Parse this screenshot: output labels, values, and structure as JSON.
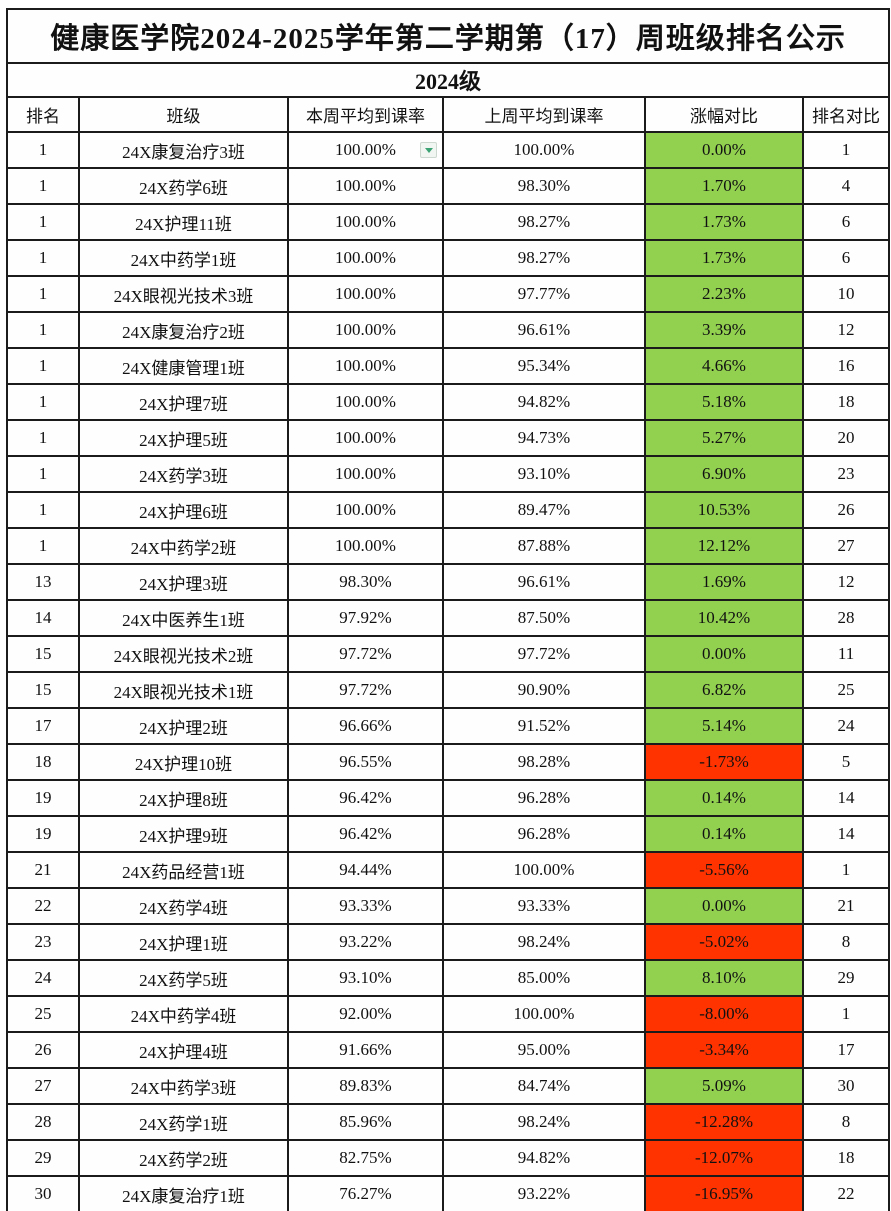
{
  "page": {
    "title": "健康医学院2024-2025学年第二学期第（17）周班级排名公示",
    "grade_label": "2024级"
  },
  "colors": {
    "positive_bg": "#92d050",
    "negative_bg": "#ff3300",
    "filter_arrow": "#3ba273",
    "border": "#1b1b1b"
  },
  "table": {
    "columns": [
      "排名",
      "班级",
      "本周平均到课率",
      "上周平均到课率",
      "涨幅对比",
      "排名对比"
    ],
    "rows": [
      {
        "rank": "1",
        "class": "24X康复治疗3班",
        "this_week": "100.00%",
        "last_week": "100.00%",
        "change": "0.00%",
        "trend": "positive",
        "rank_compare": "1",
        "filter_dropdown": true
      },
      {
        "rank": "1",
        "class": "24X药学6班",
        "this_week": "100.00%",
        "last_week": "98.30%",
        "change": "1.70%",
        "trend": "positive",
        "rank_compare": "4"
      },
      {
        "rank": "1",
        "class": "24X护理11班",
        "this_week": "100.00%",
        "last_week": "98.27%",
        "change": "1.73%",
        "trend": "positive",
        "rank_compare": "6"
      },
      {
        "rank": "1",
        "class": "24X中药学1班",
        "this_week": "100.00%",
        "last_week": "98.27%",
        "change": "1.73%",
        "trend": "positive",
        "rank_compare": "6"
      },
      {
        "rank": "1",
        "class": "24X眼视光技术3班",
        "this_week": "100.00%",
        "last_week": "97.77%",
        "change": "2.23%",
        "trend": "positive",
        "rank_compare": "10"
      },
      {
        "rank": "1",
        "class": "24X康复治疗2班",
        "this_week": "100.00%",
        "last_week": "96.61%",
        "change": "3.39%",
        "trend": "positive",
        "rank_compare": "12"
      },
      {
        "rank": "1",
        "class": "24X健康管理1班",
        "this_week": "100.00%",
        "last_week": "95.34%",
        "change": "4.66%",
        "trend": "positive",
        "rank_compare": "16"
      },
      {
        "rank": "1",
        "class": "24X护理7班",
        "this_week": "100.00%",
        "last_week": "94.82%",
        "change": "5.18%",
        "trend": "positive",
        "rank_compare": "18"
      },
      {
        "rank": "1",
        "class": "24X护理5班",
        "this_week": "100.00%",
        "last_week": "94.73%",
        "change": "5.27%",
        "trend": "positive",
        "rank_compare": "20"
      },
      {
        "rank": "1",
        "class": "24X药学3班",
        "this_week": "100.00%",
        "last_week": "93.10%",
        "change": "6.90%",
        "trend": "positive",
        "rank_compare": "23"
      },
      {
        "rank": "1",
        "class": "24X护理6班",
        "this_week": "100.00%",
        "last_week": "89.47%",
        "change": "10.53%",
        "trend": "positive",
        "rank_compare": "26"
      },
      {
        "rank": "1",
        "class": "24X中药学2班",
        "this_week": "100.00%",
        "last_week": "87.88%",
        "change": "12.12%",
        "trend": "positive",
        "rank_compare": "27"
      },
      {
        "rank": "13",
        "class": "24X护理3班",
        "this_week": "98.30%",
        "last_week": "96.61%",
        "change": "1.69%",
        "trend": "positive",
        "rank_compare": "12"
      },
      {
        "rank": "14",
        "class": "24X中医养生1班",
        "this_week": "97.92%",
        "last_week": "87.50%",
        "change": "10.42%",
        "trend": "positive",
        "rank_compare": "28"
      },
      {
        "rank": "15",
        "class": "24X眼视光技术2班",
        "this_week": "97.72%",
        "last_week": "97.72%",
        "change": "0.00%",
        "trend": "positive",
        "rank_compare": "11"
      },
      {
        "rank": "15",
        "class": "24X眼视光技术1班",
        "this_week": "97.72%",
        "last_week": "90.90%",
        "change": "6.82%",
        "trend": "positive",
        "rank_compare": "25"
      },
      {
        "rank": "17",
        "class": "24X护理2班",
        "this_week": "96.66%",
        "last_week": "91.52%",
        "change": "5.14%",
        "trend": "positive",
        "rank_compare": "24"
      },
      {
        "rank": "18",
        "class": "24X护理10班",
        "this_week": "96.55%",
        "last_week": "98.28%",
        "change": "-1.73%",
        "trend": "negative",
        "rank_compare": "5"
      },
      {
        "rank": "19",
        "class": "24X护理8班",
        "this_week": "96.42%",
        "last_week": "96.28%",
        "change": "0.14%",
        "trend": "positive",
        "rank_compare": "14"
      },
      {
        "rank": "19",
        "class": "24X护理9班",
        "this_week": "96.42%",
        "last_week": "96.28%",
        "change": "0.14%",
        "trend": "positive",
        "rank_compare": "14"
      },
      {
        "rank": "21",
        "class": "24X药品经营1班",
        "this_week": "94.44%",
        "last_week": "100.00%",
        "change": "-5.56%",
        "trend": "negative",
        "rank_compare": "1"
      },
      {
        "rank": "22",
        "class": "24X药学4班",
        "this_week": "93.33%",
        "last_week": "93.33%",
        "change": "0.00%",
        "trend": "positive",
        "rank_compare": "21"
      },
      {
        "rank": "23",
        "class": "24X护理1班",
        "this_week": "93.22%",
        "last_week": "98.24%",
        "change": "-5.02%",
        "trend": "negative",
        "rank_compare": "8"
      },
      {
        "rank": "24",
        "class": "24X药学5班",
        "this_week": "93.10%",
        "last_week": "85.00%",
        "change": "8.10%",
        "trend": "positive",
        "rank_compare": "29"
      },
      {
        "rank": "25",
        "class": "24X中药学4班",
        "this_week": "92.00%",
        "last_week": "100.00%",
        "change": "-8.00%",
        "trend": "negative",
        "rank_compare": "1"
      },
      {
        "rank": "26",
        "class": "24X护理4班",
        "this_week": "91.66%",
        "last_week": "95.00%",
        "change": "-3.34%",
        "trend": "negative",
        "rank_compare": "17"
      },
      {
        "rank": "27",
        "class": "24X中药学3班",
        "this_week": "89.83%",
        "last_week": "84.74%",
        "change": "5.09%",
        "trend": "positive",
        "rank_compare": "30"
      },
      {
        "rank": "28",
        "class": "24X药学1班",
        "this_week": "85.96%",
        "last_week": "98.24%",
        "change": "-12.28%",
        "trend": "negative",
        "rank_compare": "8"
      },
      {
        "rank": "29",
        "class": "24X药学2班",
        "this_week": "82.75%",
        "last_week": "94.82%",
        "change": "-12.07%",
        "trend": "negative",
        "rank_compare": "18"
      },
      {
        "rank": "30",
        "class": "24X康复治疗1班",
        "this_week": "76.27%",
        "last_week": "93.22%",
        "change": "-16.95%",
        "trend": "negative",
        "rank_compare": "22"
      }
    ]
  }
}
